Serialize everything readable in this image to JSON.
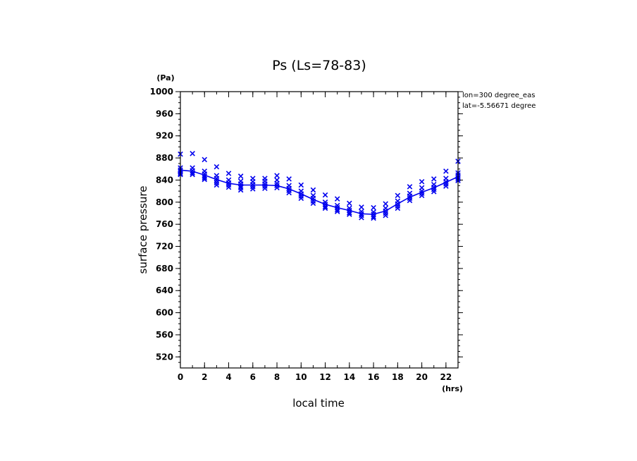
{
  "chart_data": {
    "type": "scatter",
    "title": "Ps (Ls=78-83)",
    "xlabel": "local time",
    "ylabel": "surface pressure",
    "x_unit": "(hrs)",
    "y_unit": "(Pa)",
    "xlim": [
      0,
      23
    ],
    "ylim": [
      500,
      1000
    ],
    "x_ticks": [
      0,
      2,
      4,
      6,
      8,
      10,
      12,
      14,
      16,
      18,
      20,
      22
    ],
    "y_ticks": [
      520,
      560,
      600,
      640,
      680,
      720,
      760,
      800,
      840,
      880,
      920,
      960,
      1000
    ],
    "annotations": [
      "lon=300 degree_eas",
      "lat=-5.56671 degree"
    ],
    "colors": {
      "series": "#0000ee",
      "axes": "#000000"
    },
    "series": [
      {
        "style": "line",
        "x": [
          0,
          1,
          2,
          3,
          4,
          5,
          6,
          7,
          8,
          9,
          10,
          11,
          12,
          13,
          14,
          15,
          16,
          17,
          18,
          19,
          20,
          21,
          22,
          23
        ],
        "y": [
          858,
          856,
          849,
          841,
          834,
          831,
          831,
          831,
          830,
          824,
          815,
          805,
          796,
          790,
          785,
          779,
          778,
          784,
          797,
          809,
          818,
          826,
          836,
          846
        ]
      },
      {
        "style": "markers",
        "marker": "x",
        "points": [
          [
            0,
            887
          ],
          [
            0,
            862
          ],
          [
            0,
            858
          ],
          [
            0,
            855
          ],
          [
            0,
            852
          ],
          [
            0,
            850
          ],
          [
            1,
            888
          ],
          [
            1,
            862
          ],
          [
            1,
            857
          ],
          [
            1,
            853
          ],
          [
            1,
            850
          ],
          [
            2,
            877
          ],
          [
            2,
            856
          ],
          [
            2,
            851
          ],
          [
            2,
            847
          ],
          [
            2,
            844
          ],
          [
            2,
            841
          ],
          [
            3,
            864
          ],
          [
            3,
            848
          ],
          [
            3,
            843
          ],
          [
            3,
            839
          ],
          [
            3,
            835
          ],
          [
            3,
            831
          ],
          [
            4,
            852
          ],
          [
            4,
            840
          ],
          [
            4,
            835
          ],
          [
            4,
            831
          ],
          [
            4,
            827
          ],
          [
            5,
            847
          ],
          [
            5,
            838
          ],
          [
            5,
            833
          ],
          [
            5,
            829
          ],
          [
            5,
            826
          ],
          [
            5,
            822
          ],
          [
            6,
            843
          ],
          [
            6,
            837
          ],
          [
            6,
            832
          ],
          [
            6,
            828
          ],
          [
            6,
            824
          ],
          [
            7,
            843
          ],
          [
            7,
            838
          ],
          [
            7,
            833
          ],
          [
            7,
            829
          ],
          [
            7,
            825
          ],
          [
            8,
            848
          ],
          [
            8,
            840
          ],
          [
            8,
            834
          ],
          [
            8,
            830
          ],
          [
            8,
            826
          ],
          [
            9,
            842
          ],
          [
            9,
            830
          ],
          [
            9,
            825
          ],
          [
            9,
            821
          ],
          [
            9,
            817
          ],
          [
            10,
            831
          ],
          [
            10,
            820
          ],
          [
            10,
            815
          ],
          [
            10,
            811
          ],
          [
            10,
            807
          ],
          [
            11,
            822
          ],
          [
            11,
            812
          ],
          [
            11,
            807
          ],
          [
            11,
            802
          ],
          [
            11,
            798
          ],
          [
            12,
            813
          ],
          [
            12,
            800
          ],
          [
            12,
            796
          ],
          [
            12,
            792
          ],
          [
            12,
            789
          ],
          [
            13,
            806
          ],
          [
            13,
            794
          ],
          [
            13,
            790
          ],
          [
            13,
            786
          ],
          [
            13,
            783
          ],
          [
            14,
            798
          ],
          [
            14,
            789
          ],
          [
            14,
            785
          ],
          [
            14,
            781
          ],
          [
            14,
            778
          ],
          [
            15,
            791
          ],
          [
            15,
            783
          ],
          [
            15,
            779
          ],
          [
            15,
            776
          ],
          [
            15,
            772
          ],
          [
            16,
            790
          ],
          [
            16,
            782
          ],
          [
            16,
            778
          ],
          [
            16,
            774
          ],
          [
            16,
            771
          ],
          [
            17,
            797
          ],
          [
            17,
            789
          ],
          [
            17,
            784
          ],
          [
            17,
            780
          ],
          [
            17,
            776
          ],
          [
            18,
            812
          ],
          [
            18,
            802
          ],
          [
            18,
            797
          ],
          [
            18,
            793
          ],
          [
            18,
            789
          ],
          [
            19,
            828
          ],
          [
            19,
            816
          ],
          [
            19,
            811
          ],
          [
            19,
            807
          ],
          [
            19,
            803
          ],
          [
            20,
            837
          ],
          [
            20,
            826
          ],
          [
            20,
            820
          ],
          [
            20,
            816
          ],
          [
            20,
            812
          ],
          [
            21,
            842
          ],
          [
            21,
            832
          ],
          [
            21,
            827
          ],
          [
            21,
            823
          ],
          [
            21,
            819
          ],
          [
            22,
            856
          ],
          [
            22,
            843
          ],
          [
            22,
            837
          ],
          [
            22,
            833
          ],
          [
            22,
            829
          ],
          [
            23,
            874
          ],
          [
            23,
            853
          ],
          [
            23,
            849
          ],
          [
            23,
            845
          ],
          [
            23,
            842
          ],
          [
            23,
            839
          ]
        ]
      }
    ]
  }
}
